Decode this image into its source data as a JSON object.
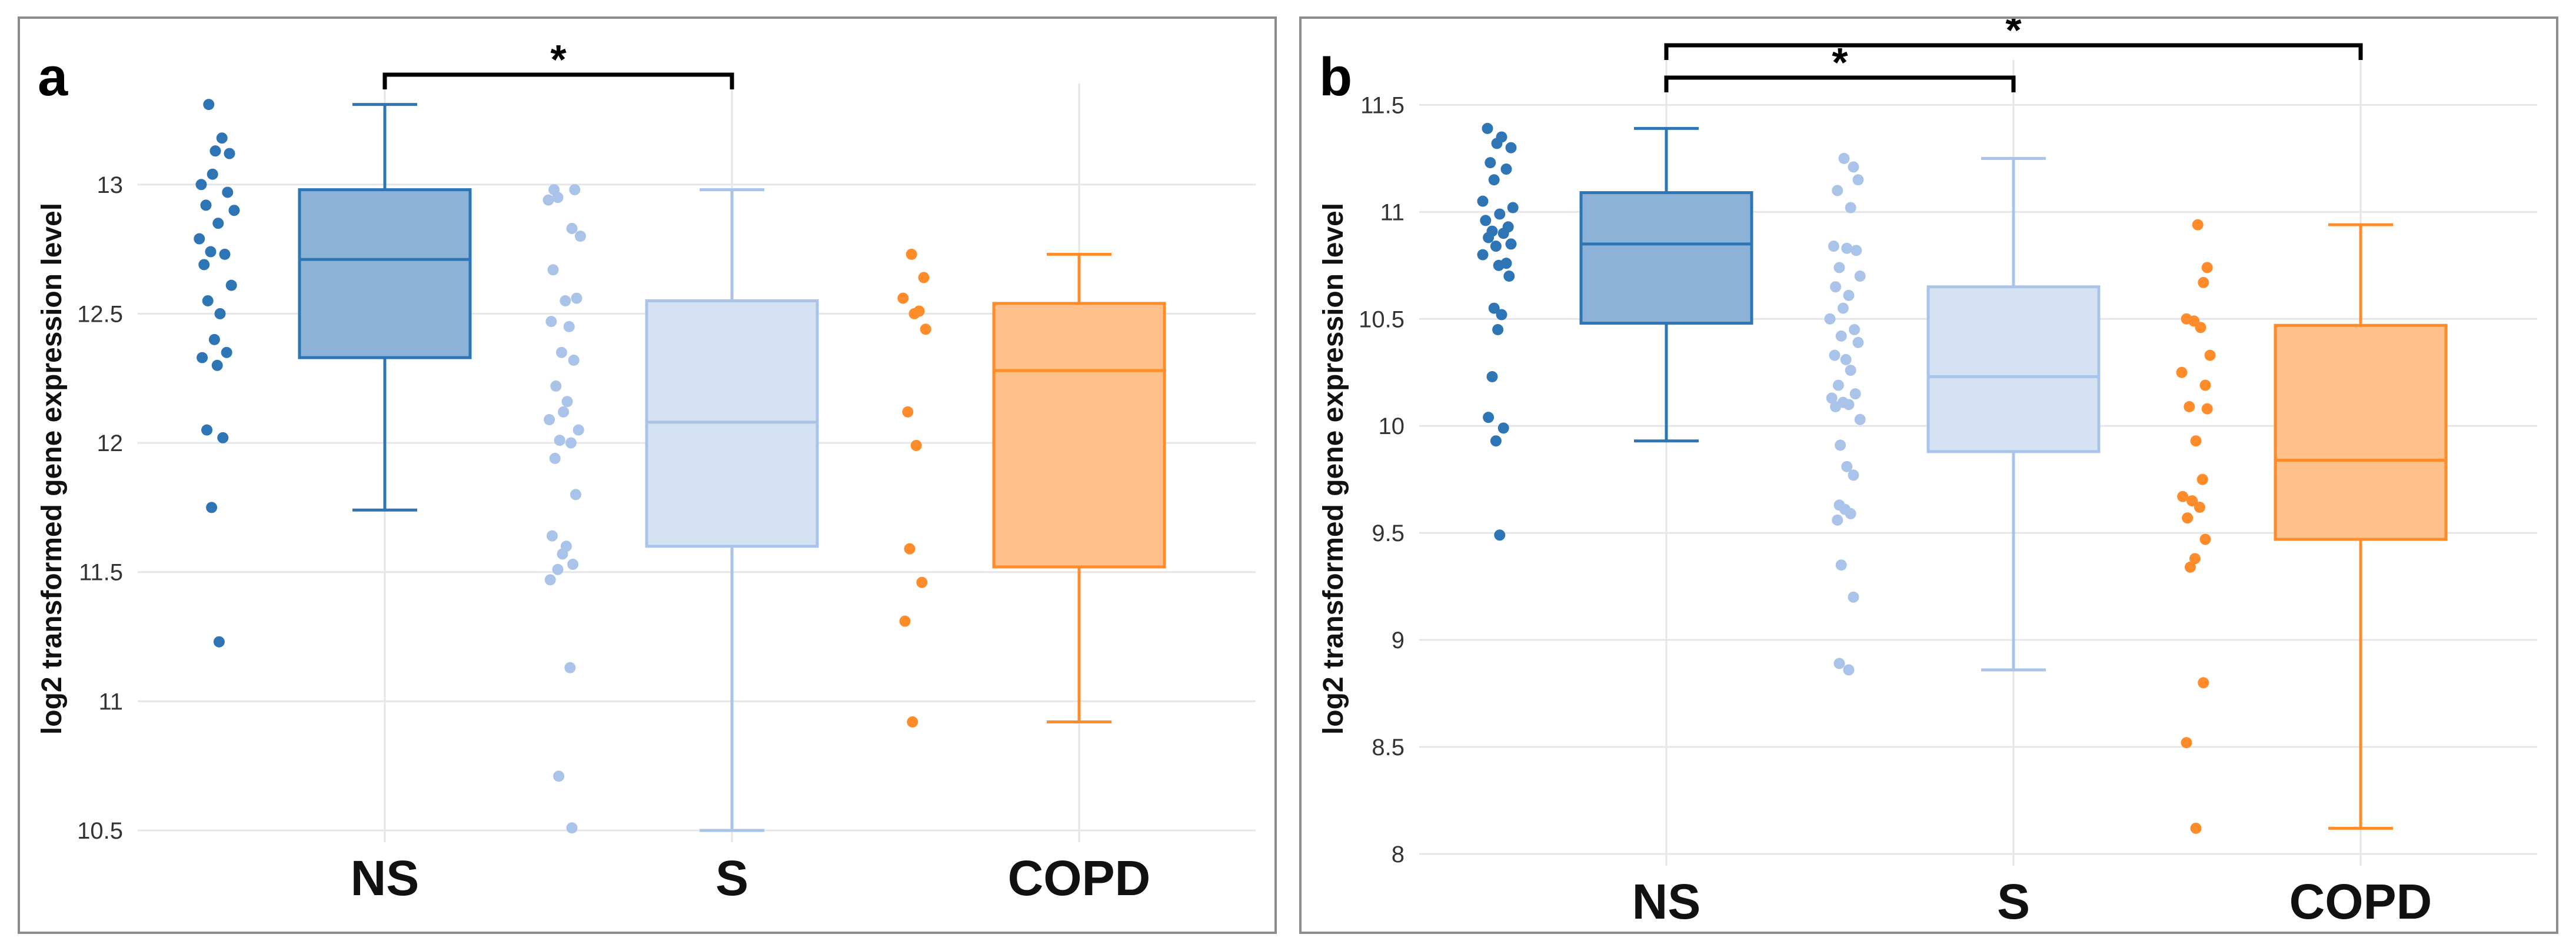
{
  "chart_data": [
    {
      "type": "box",
      "panel_label": "a",
      "ylabel": "log2 transformed gene expression level",
      "categories": [
        "NS",
        "S",
        "COPD"
      ],
      "ylim": [
        10.5,
        13.3
      ],
      "yticks": [
        10.5,
        11,
        11.5,
        12,
        12.5,
        13
      ],
      "ytick_labels": [
        "10.5",
        "11",
        "11.5",
        "12",
        "12.5",
        "13"
      ],
      "grid": true,
      "colors": [
        "#2e75b6",
        "#a9c4e8",
        "#ff8c2a"
      ],
      "boxes": [
        {
          "name": "NS",
          "min": 11.74,
          "q1": 12.33,
          "median": 12.71,
          "q3": 12.98,
          "max": 13.31
        },
        {
          "name": "S",
          "min": 10.5,
          "q1": 11.6,
          "median": 12.08,
          "q3": 12.55,
          "max": 12.98
        },
        {
          "name": "COPD",
          "min": 10.92,
          "q1": 11.52,
          "median": 12.28,
          "q3": 12.54,
          "max": 12.73
        }
      ],
      "points": [
        [
          13.31,
          13.18,
          13.13,
          13.12,
          13.04,
          13.0,
          12.97,
          12.92,
          12.9,
          12.85,
          12.79,
          12.74,
          12.73,
          12.69,
          12.61,
          12.55,
          12.5,
          12.4,
          12.35,
          12.33,
          12.3,
          12.05,
          12.02,
          11.75,
          11.23
        ],
        [
          12.98,
          12.98,
          12.95,
          12.94,
          12.83,
          12.8,
          12.67,
          12.56,
          12.55,
          12.47,
          12.45,
          12.35,
          12.32,
          12.22,
          12.16,
          12.12,
          12.09,
          12.05,
          12.01,
          12.0,
          11.94,
          11.8,
          11.64,
          11.6,
          11.57,
          11.53,
          11.51,
          11.47,
          11.13,
          10.71,
          10.51
        ],
        [
          12.73,
          12.64,
          12.56,
          12.51,
          12.5,
          12.44,
          12.12,
          11.99,
          11.59,
          11.46,
          11.31,
          10.92
        ]
      ],
      "significance": [
        {
          "from": "NS",
          "to": "S",
          "label": "*"
        }
      ]
    },
    {
      "type": "box",
      "panel_label": "b",
      "ylabel": "log2 transformed gene expression level",
      "categories": [
        "NS",
        "S",
        "COPD"
      ],
      "ylim": [
        8,
        11.6
      ],
      "yticks": [
        8,
        8.5,
        9,
        9.5,
        10,
        10.5,
        11,
        11.5
      ],
      "ytick_labels": [
        "8",
        "8.5",
        "9",
        "9.5",
        "10",
        "10.5",
        "11",
        "11.5"
      ],
      "grid": true,
      "colors": [
        "#2e75b6",
        "#a9c4e8",
        "#ff8c2a"
      ],
      "boxes": [
        {
          "name": "NS",
          "min": 9.93,
          "q1": 10.48,
          "median": 10.85,
          "q3": 11.09,
          "max": 11.39
        },
        {
          "name": "S",
          "min": 8.86,
          "q1": 9.88,
          "median": 10.23,
          "q3": 10.65,
          "max": 11.25
        },
        {
          "name": "COPD",
          "min": 8.12,
          "q1": 9.47,
          "median": 9.84,
          "q3": 10.47,
          "max": 10.94
        }
      ],
      "points": [
        [
          11.39,
          11.35,
          11.32,
          11.3,
          11.23,
          11.2,
          11.15,
          11.05,
          11.02,
          10.99,
          10.96,
          10.93,
          10.91,
          10.9,
          10.88,
          10.85,
          10.84,
          10.8,
          10.76,
          10.75,
          10.7,
          10.55,
          10.52,
          10.45,
          10.23,
          10.04,
          9.99,
          9.93,
          9.49
        ],
        [
          11.25,
          11.21,
          11.15,
          11.1,
          11.02,
          10.84,
          10.83,
          10.82,
          10.74,
          10.7,
          10.65,
          10.61,
          10.55,
          10.5,
          10.45,
          10.42,
          10.39,
          10.33,
          10.31,
          10.26,
          10.19,
          10.15,
          10.13,
          10.11,
          10.09,
          10.1,
          10.03,
          9.91,
          9.81,
          9.77,
          9.63,
          9.61,
          9.59,
          9.56,
          9.35,
          9.2,
          8.89,
          8.86
        ],
        [
          10.94,
          10.74,
          10.67,
          10.5,
          10.49,
          10.46,
          10.33,
          10.25,
          10.19,
          10.09,
          10.08,
          9.93,
          9.75,
          9.67,
          9.65,
          9.62,
          9.57,
          9.47,
          9.38,
          9.34,
          8.8,
          8.52,
          8.12
        ]
      ],
      "significance": [
        {
          "from": "NS",
          "to": "S",
          "label": "*"
        },
        {
          "from": "NS",
          "to": "COPD",
          "label": "*"
        }
      ]
    }
  ]
}
